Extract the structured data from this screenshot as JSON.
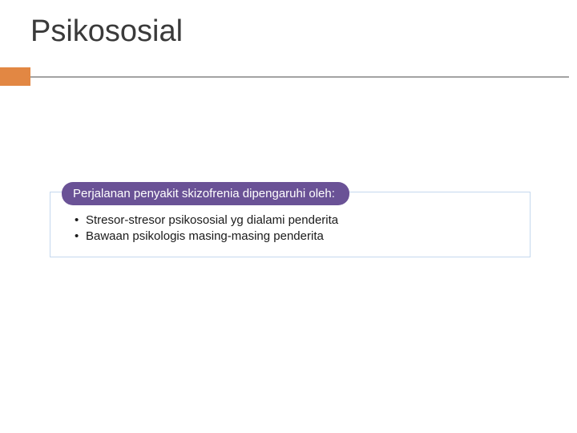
{
  "slide": {
    "title": "Psikososial",
    "accent_color": "#e28743",
    "rule_color": "#a3a3a3",
    "header_pill": {
      "text": "Perjalanan penyakit skizofrenia dipengaruhi oleh:",
      "bg_color": "#6a5296",
      "text_color": "#ffffff"
    },
    "bullets": [
      "Stresor-stresor psikososial yg dialami penderita",
      "Bawaan psikologis masing-masing penderita"
    ],
    "box_border_color": "#c5d8ee",
    "background_color": "#ffffff",
    "title_fontsize": 38,
    "body_fontsize": 15
  }
}
